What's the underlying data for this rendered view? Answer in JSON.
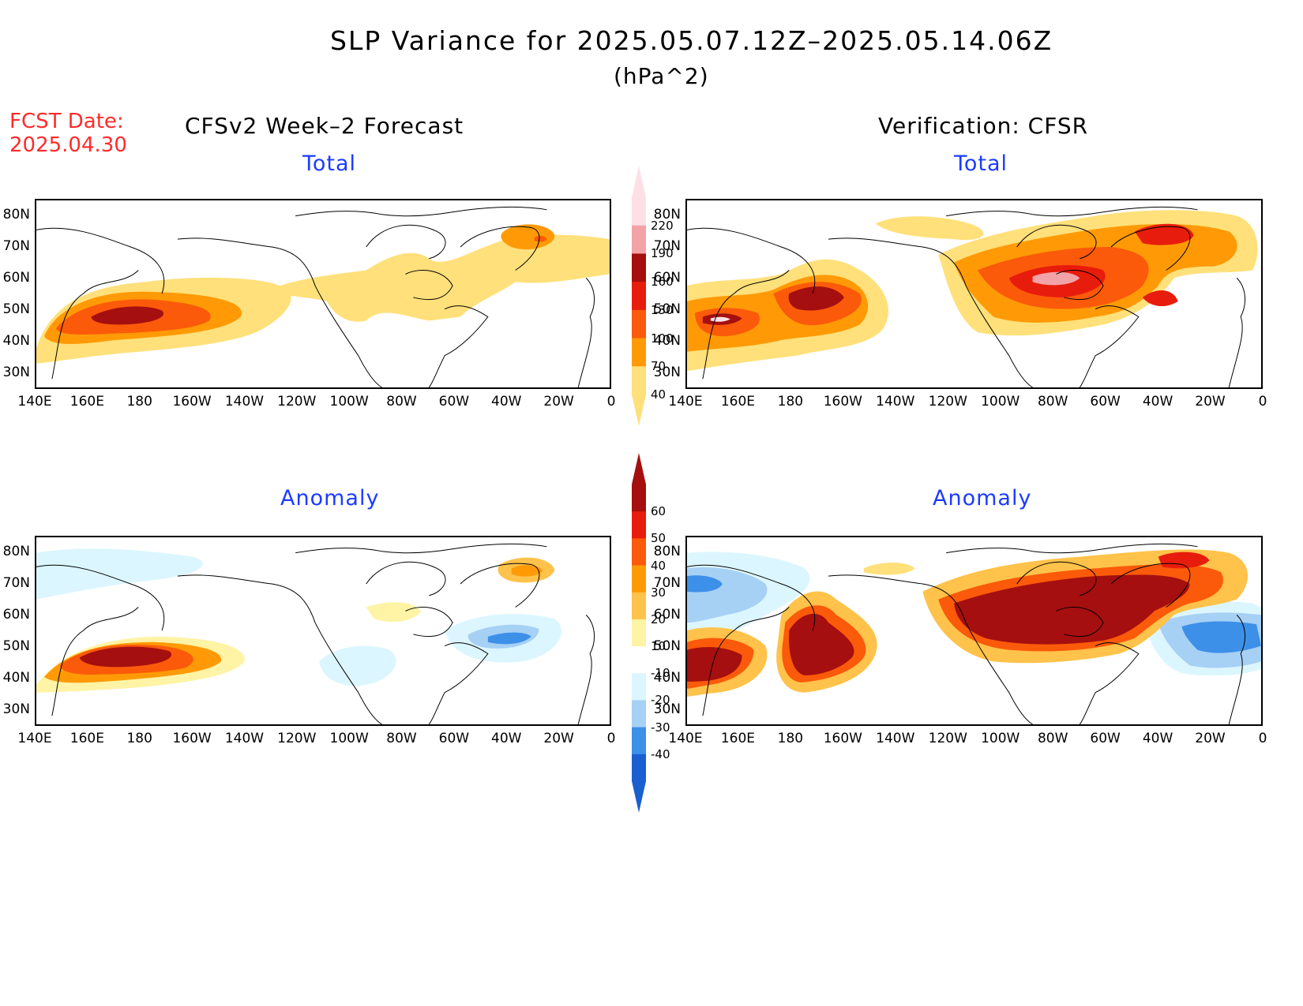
{
  "title": "SLP Variance for 2025.05.07.12Z–2025.05.14.06Z",
  "units": "(hPa^2)",
  "fcst_date": {
    "label": "FCST Date:",
    "value": "2025.04.30"
  },
  "columns": {
    "left": "CFSv2 Week–2 Forecast",
    "right": "Verification: CFSR"
  },
  "panel_titles": {
    "top": "Total",
    "bottom": "Anomaly"
  },
  "lat_labels": [
    "80N",
    "70N",
    "60N",
    "50N",
    "40N",
    "30N"
  ],
  "lon_labels": [
    "140E",
    "160E",
    "180",
    "160W",
    "140W",
    "120W",
    "100W",
    "80W",
    "60W",
    "40W",
    "20W",
    "0"
  ],
  "colorbars": {
    "total": {
      "levels": [
        "220",
        "190",
        "160",
        "130",
        "100",
        "70",
        "40"
      ],
      "colors": [
        "#fde0e6",
        "#f2a3a8",
        "#a50f0f",
        "#e81c0c",
        "#fb5a0a",
        "#ff9a06",
        "#ffe07a"
      ]
    },
    "anomaly": {
      "levels": [
        "60",
        "50",
        "40",
        "30",
        "20",
        "10",
        "-10",
        "-20",
        "-30",
        "-40"
      ],
      "colors": [
        "#a50f0f",
        "#e81c0c",
        "#fb5a0a",
        "#ff9a06",
        "#ffc24a",
        "#fff3a6",
        "#ffffff",
        "#dcf6ff",
        "#a7d0f5",
        "#3d90e8",
        "#1a5fd0"
      ]
    }
  }
}
